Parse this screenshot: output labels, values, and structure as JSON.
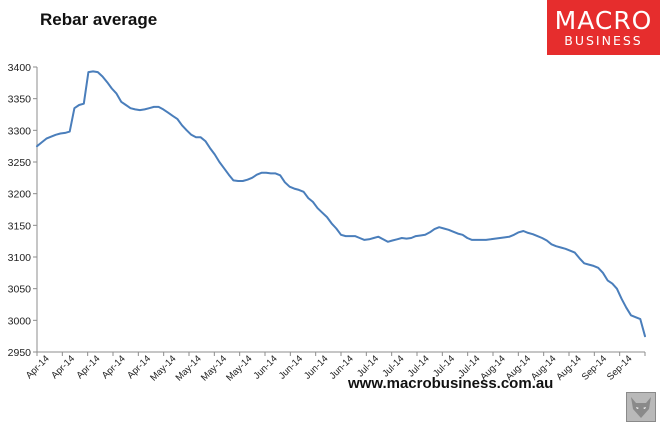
{
  "header": {
    "title": "Rebar average"
  },
  "logo": {
    "line1": "MACRO",
    "line2": "BUSINESS"
  },
  "footer": {
    "url": "www.macrobusiness.com.au",
    "icon": "fox-icon"
  },
  "colors": {
    "line": "#4a7ebb",
    "logo_bg": "#e62d2d"
  },
  "chart_data": {
    "type": "line",
    "title": "Rebar average",
    "xlabel": "",
    "ylabel": "",
    "ylim": [
      2950,
      3400
    ],
    "yticks": [
      2950,
      3000,
      3050,
      3100,
      3150,
      3200,
      3250,
      3300,
      3350,
      3400
    ],
    "xtick_labels": [
      "Apr-14",
      "Apr-14",
      "Apr-14",
      "Apr-14",
      "Apr-14",
      "May-14",
      "May-14",
      "May-14",
      "May-14",
      "Jun-14",
      "Jun-14",
      "Jun-14",
      "Jun-14",
      "Jul-14",
      "Jul-14",
      "Jul-14",
      "Jul-14",
      "Jul-14",
      "Aug-14",
      "Aug-14",
      "Aug-14",
      "Aug-14",
      "Sep-14",
      "Sep-14"
    ],
    "grid": false,
    "legend": "none",
    "x_range": [
      0,
      130
    ],
    "x": [
      0,
      1,
      2,
      3,
      4,
      5,
      6,
      7,
      8,
      9,
      10,
      11,
      12,
      13,
      14,
      15,
      16,
      17,
      18,
      19,
      20,
      21,
      22,
      23,
      24,
      25,
      26,
      27,
      28,
      29,
      30,
      31,
      32,
      33,
      34,
      35,
      36,
      37,
      38,
      39,
      40,
      41,
      42,
      43,
      44,
      45,
      46,
      47,
      48,
      49,
      50,
      51,
      52,
      53,
      54,
      55,
      56,
      57,
      58,
      59,
      60,
      61,
      62,
      63,
      64,
      65,
      66,
      67,
      68,
      69,
      70,
      71,
      72,
      73,
      74,
      75,
      76,
      77,
      78,
      79,
      80,
      81,
      82,
      83,
      84,
      85,
      86,
      87,
      88,
      89,
      90,
      91,
      92,
      93,
      94,
      95,
      96,
      97,
      98,
      99,
      100,
      101,
      102,
      103,
      104,
      105,
      106,
      107,
      108,
      109,
      110,
      111,
      112,
      113,
      114,
      115,
      116,
      117,
      118,
      119,
      120,
      121,
      122,
      123,
      124,
      125,
      126,
      127,
      128,
      129,
      130
    ],
    "series": [
      {
        "name": "",
        "values": [
          3275,
          3281,
          3287,
          3290,
          3293,
          3295,
          3296,
          3298,
          3335,
          3340,
          3342,
          3392,
          3393,
          3392,
          3385,
          3376,
          3366,
          3358,
          3345,
          3340,
          3335,
          3333,
          3332,
          3333,
          3335,
          3337,
          3337,
          3333,
          3328,
          3323,
          3318,
          3308,
          3300,
          3293,
          3289,
          3289,
          3283,
          3272,
          3262,
          3250,
          3240,
          3230,
          3221,
          3220,
          3220,
          3222,
          3225,
          3230,
          3233,
          3233,
          3232,
          3232,
          3229,
          3218,
          3211,
          3208,
          3206,
          3203,
          3193,
          3187,
          3177,
          3170,
          3163,
          3153,
          3145,
          3135,
          3133,
          3133,
          3133,
          3130,
          3127,
          3128,
          3130,
          3132,
          3128,
          3124,
          3126,
          3128,
          3130,
          3129,
          3130,
          3133,
          3134,
          3135,
          3139,
          3144,
          3147,
          3145,
          3143,
          3140,
          3137,
          3135,
          3130,
          3127,
          3127,
          3127,
          3127,
          3128,
          3129,
          3130,
          3131,
          3132,
          3135,
          3139,
          3141,
          3138,
          3136,
          3133,
          3130,
          3126,
          3120,
          3117,
          3115,
          3113,
          3110,
          3107,
          3098,
          3090,
          3088,
          3086,
          3083,
          3075,
          3063,
          3058,
          3050,
          3034,
          3020,
          3008,
          3005,
          3002,
          2975
        ]
      }
    ]
  }
}
